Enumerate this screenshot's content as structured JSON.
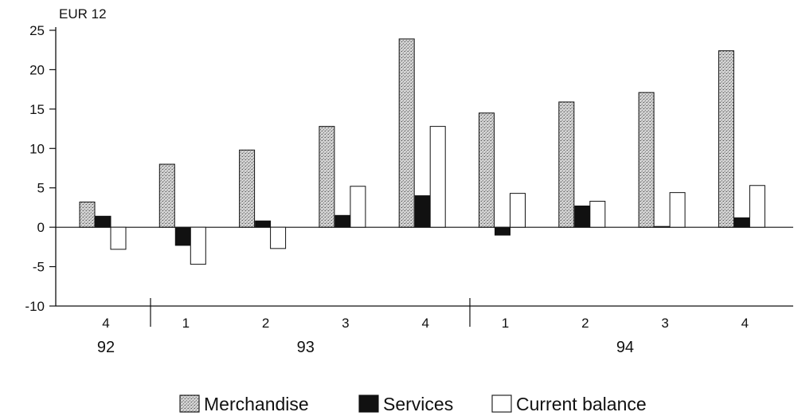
{
  "chart_data": {
    "type": "bar",
    "unit_label": "EUR 12",
    "categories": [
      "4",
      "1",
      "2",
      "3",
      "4",
      "1",
      "2",
      "3",
      "4"
    ],
    "year_groups": [
      {
        "label": "92",
        "start": 0,
        "end": 0
      },
      {
        "label": "93",
        "start": 1,
        "end": 4
      },
      {
        "label": "94",
        "start": 5,
        "end": 8
      }
    ],
    "series": [
      {
        "name": "Merchandise",
        "values": [
          3.2,
          8.0,
          9.8,
          12.8,
          23.9,
          14.5,
          15.9,
          17.1,
          22.4
        ]
      },
      {
        "name": "Services",
        "values": [
          1.4,
          -2.3,
          0.8,
          1.5,
          4.0,
          -1.0,
          2.7,
          0.1,
          1.2
        ]
      },
      {
        "name": "Current balance",
        "values": [
          -2.8,
          -4.7,
          -2.7,
          5.2,
          12.8,
          4.3,
          3.3,
          4.4,
          5.3
        ]
      }
    ],
    "series_colors": [
      "#c4c4c4",
      "#111111",
      "#ffffff"
    ],
    "ylim": [
      -10,
      25
    ],
    "yticks": [
      -10,
      -5,
      0,
      5,
      10,
      15,
      20,
      25
    ],
    "title": "",
    "xlabel": "",
    "ylabel": "",
    "legend_position": "bottom-center",
    "grid": false
  }
}
